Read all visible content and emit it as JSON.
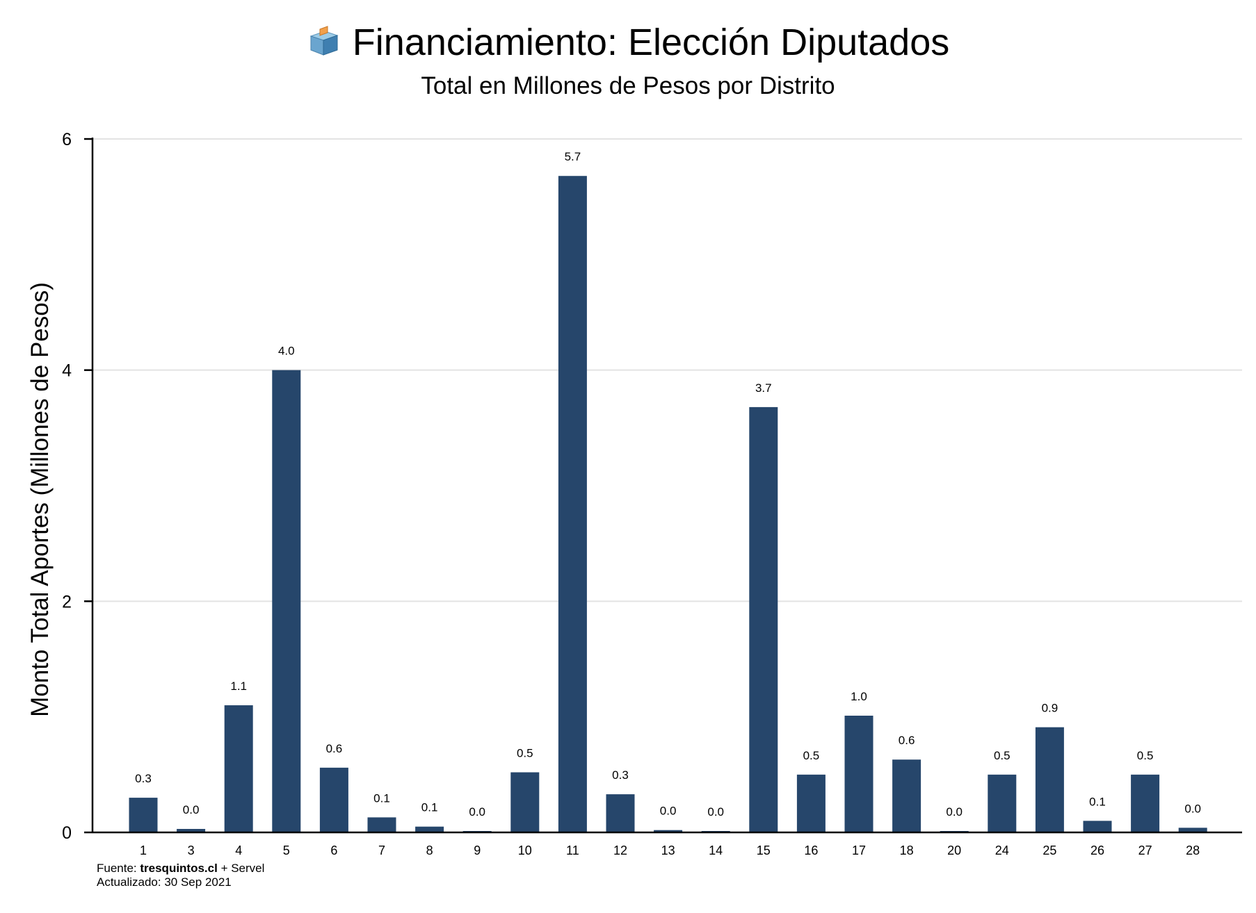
{
  "header": {
    "title": "Financiamiento: Elección Diputados",
    "subtitle": "Total en Millones de Pesos por Distrito",
    "icon": "ballot-box-icon"
  },
  "footer": {
    "source_prefix": "Fuente: ",
    "source_site": "tresquintos.cl",
    "source_suffix": " + Servel",
    "updated": "Actualizado: 30 Sep 2021"
  },
  "colors": {
    "bar": "#26466b",
    "grid": "#e3e3e3",
    "axis": "#000000"
  },
  "chart_data": {
    "type": "bar",
    "title": "Financiamiento: Elección Diputados",
    "subtitle": "Total en Millones de Pesos por Distrito",
    "xlabel": "",
    "ylabel": "Monto Total Aportes (Millones de Pesos)",
    "ylim": [
      0,
      6
    ],
    "yticks": [
      0,
      2,
      4,
      6
    ],
    "grid": true,
    "categories": [
      "1",
      "3",
      "4",
      "5",
      "6",
      "7",
      "8",
      "9",
      "10",
      "11",
      "12",
      "13",
      "14",
      "15",
      "16",
      "17",
      "18",
      "20",
      "24",
      "25",
      "26",
      "27",
      "28"
    ],
    "values": [
      0.3,
      0.03,
      1.1,
      4.0,
      0.56,
      0.13,
      0.05,
      0.01,
      0.52,
      5.68,
      0.33,
      0.02,
      0.01,
      3.68,
      0.5,
      1.01,
      0.63,
      0.01,
      0.5,
      0.91,
      0.1,
      0.5,
      0.04
    ],
    "labels": [
      "0.3",
      "0.0",
      "1.1",
      "4.0",
      "0.6",
      "0.1",
      "0.1",
      "0.0",
      "0.5",
      "5.7",
      "0.3",
      "0.0",
      "0.0",
      "3.7",
      "0.5",
      "1.0",
      "0.6",
      "0.0",
      "0.5",
      "0.9",
      "0.1",
      "0.5",
      "0.0"
    ]
  }
}
